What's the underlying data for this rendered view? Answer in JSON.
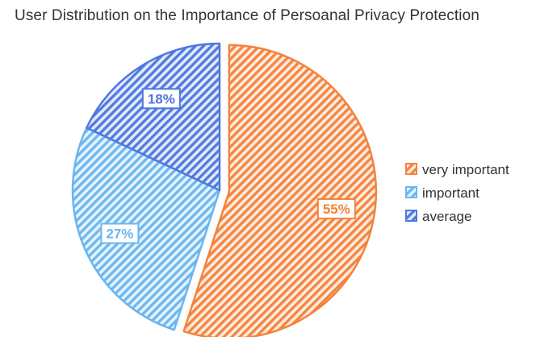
{
  "chart_data": {
    "type": "pie",
    "title": "User Distribution on the Importance of Persoanal Privacy Protection",
    "series": [
      {
        "name": "very important",
        "value": 55,
        "label": "55%",
        "color": "#f5823a",
        "exploded": true
      },
      {
        "name": "important",
        "value": 27,
        "label": "27%",
        "color": "#6ab6f0",
        "exploded": false
      },
      {
        "name": "average",
        "value": 18,
        "label": "18%",
        "color": "#4d78e0",
        "exploded": false
      }
    ],
    "fill_pattern": "diagonal-stripes",
    "legend": {
      "position": "right"
    }
  }
}
